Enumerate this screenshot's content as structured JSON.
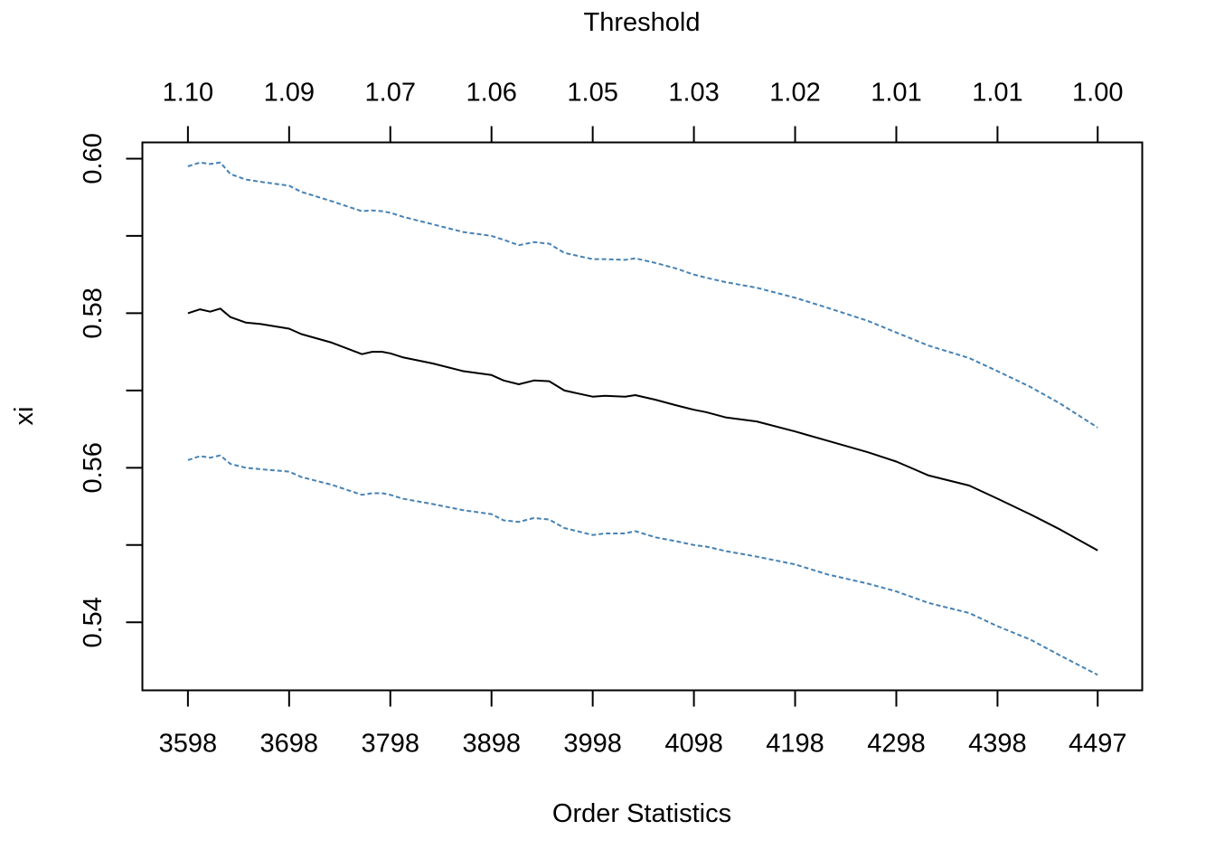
{
  "chart_data": {
    "type": "line",
    "title": "",
    "xlabel": "Order Statistics",
    "ylabel": "xi",
    "top_axis_label": "Threshold",
    "xlim": [
      3553,
      4541
    ],
    "ylim": [
      0.5312,
      0.6021
    ],
    "x_ticks": [
      3598,
      3698,
      3798,
      3898,
      3998,
      4098,
      4198,
      4298,
      4398,
      4497
    ],
    "x_tick_labels": [
      "3598",
      "3698",
      "3798",
      "3898",
      "3998",
      "4098",
      "4198",
      "4298",
      "4398",
      "4497"
    ],
    "y_ticks": [
      0.54,
      0.56,
      0.58,
      0.6
    ],
    "y_tick_labels": [
      "0.54",
      "0.56",
      "0.58",
      "0.60"
    ],
    "top_ticks": [
      3598,
      3698,
      3798,
      3898,
      3998,
      4098,
      4198,
      4298,
      4398,
      4497
    ],
    "top_tick_labels": [
      "1.10",
      "1.09",
      "1.07",
      "1.06",
      "1.05",
      "1.03",
      "1.02",
      "1.01",
      "1.01",
      "1.00"
    ],
    "grid": false,
    "legend": "none",
    "series": [
      {
        "role": "estimate",
        "color": "#000000",
        "dash": "solid",
        "x": [
          3598,
          3610,
          3620,
          3630,
          3640,
          3655,
          3670,
          3698,
          3710,
          3740,
          3770,
          3780,
          3790,
          3798,
          3810,
          3840,
          3870,
          3898,
          3910,
          3925,
          3940,
          3955,
          3970,
          3998,
          4010,
          4030,
          4040,
          4060,
          4080,
          4098,
          4110,
          4130,
          4160,
          4198,
          4230,
          4270,
          4298,
          4330,
          4370,
          4398,
          4430,
          4460,
          4497
        ],
        "y": [
          0.58,
          0.5805,
          0.5802,
          0.5806,
          0.5795,
          0.5788,
          0.5786,
          0.578,
          0.5773,
          0.5762,
          0.5747,
          0.575,
          0.575,
          0.5748,
          0.5743,
          0.5735,
          0.5725,
          0.572,
          0.5713,
          0.5708,
          0.5713,
          0.5712,
          0.57,
          0.5692,
          0.5693,
          0.5692,
          0.5694,
          0.5688,
          0.5681,
          0.5675,
          0.5672,
          0.5665,
          0.566,
          0.5647,
          0.5635,
          0.562,
          0.5608,
          0.559,
          0.5577,
          0.556,
          0.554,
          0.552,
          0.5493
        ]
      },
      {
        "role": "upper bound",
        "color": "#4682b4",
        "dash": "dashed",
        "x": [
          3598,
          3610,
          3620,
          3630,
          3640,
          3655,
          3670,
          3698,
          3710,
          3740,
          3770,
          3780,
          3790,
          3798,
          3810,
          3840,
          3870,
          3898,
          3910,
          3925,
          3940,
          3955,
          3970,
          3998,
          4010,
          4030,
          4040,
          4060,
          4080,
          4098,
          4110,
          4130,
          4160,
          4198,
          4230,
          4270,
          4298,
          4330,
          4370,
          4398,
          4430,
          4460,
          4497
        ],
        "y": [
          0.599,
          0.5995,
          0.5993,
          0.5995,
          0.598,
          0.5973,
          0.597,
          0.5965,
          0.5957,
          0.5945,
          0.5932,
          0.5933,
          0.5932,
          0.593,
          0.5925,
          0.5915,
          0.5905,
          0.59,
          0.5895,
          0.5888,
          0.5892,
          0.589,
          0.5878,
          0.587,
          0.587,
          0.5869,
          0.5871,
          0.5865,
          0.5858,
          0.585,
          0.5846,
          0.584,
          0.5833,
          0.582,
          0.5807,
          0.579,
          0.5775,
          0.5758,
          0.5742,
          0.5725,
          0.5705,
          0.5683,
          0.5652
        ]
      },
      {
        "role": "lower bound",
        "color": "#4682b4",
        "dash": "dashed",
        "x": [
          3598,
          3610,
          3620,
          3630,
          3640,
          3655,
          3670,
          3698,
          3710,
          3740,
          3770,
          3780,
          3790,
          3798,
          3810,
          3840,
          3870,
          3898,
          3910,
          3925,
          3940,
          3955,
          3970,
          3998,
          4010,
          4030,
          4040,
          4060,
          4080,
          4098,
          4110,
          4130,
          4160,
          4198,
          4230,
          4270,
          4298,
          4330,
          4370,
          4398,
          4430,
          4460,
          4497
        ],
        "y": [
          0.561,
          0.5615,
          0.5613,
          0.5616,
          0.5605,
          0.56,
          0.5598,
          0.5595,
          0.5588,
          0.5578,
          0.5565,
          0.5567,
          0.5567,
          0.5565,
          0.556,
          0.5553,
          0.5545,
          0.554,
          0.5532,
          0.553,
          0.5535,
          0.5533,
          0.5522,
          0.5513,
          0.5515,
          0.5515,
          0.5518,
          0.551,
          0.5505,
          0.55,
          0.5498,
          0.5492,
          0.5485,
          0.5475,
          0.5462,
          0.545,
          0.544,
          0.5425,
          0.5412,
          0.5395,
          0.5378,
          0.5357,
          0.5332
        ]
      }
    ]
  }
}
